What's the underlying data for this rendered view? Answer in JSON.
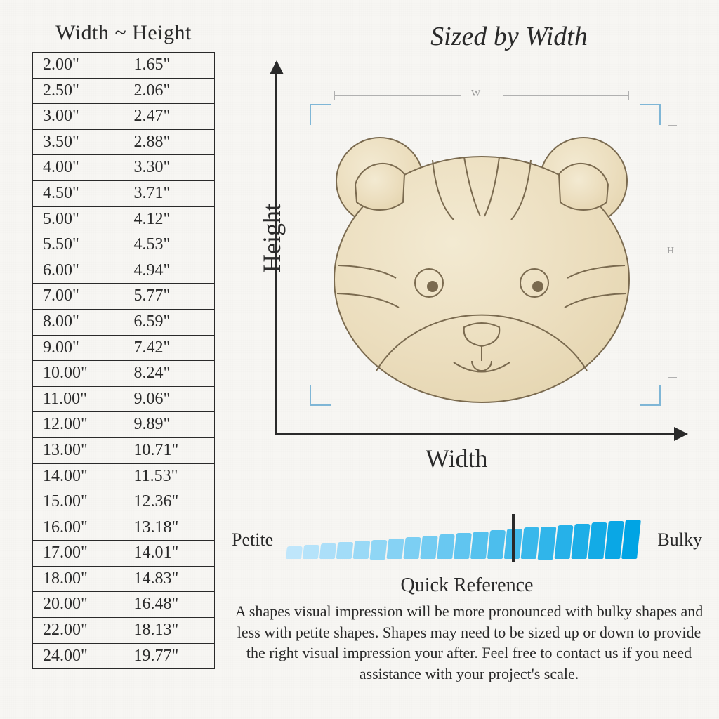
{
  "table": {
    "title": "Width ~ Height",
    "rows": [
      [
        "2.00\"",
        "1.65\""
      ],
      [
        "2.50\"",
        "2.06\""
      ],
      [
        "3.00\"",
        "2.47\""
      ],
      [
        "3.50\"",
        "2.88\""
      ],
      [
        "4.00\"",
        "3.30\""
      ],
      [
        "4.50\"",
        "3.71\""
      ],
      [
        "5.00\"",
        "4.12\""
      ],
      [
        "5.50\"",
        "4.53\""
      ],
      [
        "6.00\"",
        "4.94\""
      ],
      [
        "7.00\"",
        "5.77\""
      ],
      [
        "8.00\"",
        "6.59\""
      ],
      [
        "9.00\"",
        "7.42\""
      ],
      [
        "10.00\"",
        "8.24\""
      ],
      [
        "11.00\"",
        "9.06\""
      ],
      [
        "12.00\"",
        "9.89\""
      ],
      [
        "13.00\"",
        "10.71\""
      ],
      [
        "14.00\"",
        "11.53\""
      ],
      [
        "15.00\"",
        "12.36\""
      ],
      [
        "16.00\"",
        "13.18\""
      ],
      [
        "17.00\"",
        "14.01\""
      ],
      [
        "18.00\"",
        "14.83\""
      ],
      [
        "20.00\"",
        "16.48\""
      ],
      [
        "22.00\"",
        "18.13\""
      ],
      [
        "24.00\"",
        "19.77\""
      ]
    ],
    "cell_fontsize": 24,
    "border_color": "#2a2a2a"
  },
  "main_title": "Sized by Width",
  "axes": {
    "y_label": "Height",
    "x_label": "Width",
    "dim_w_label": "W",
    "dim_h_label": "H"
  },
  "product": {
    "name": "tiger-face-wood-cutout",
    "fill": "#ede0c1",
    "stroke": "#7a6a4f"
  },
  "scale": {
    "left_label": "Petite",
    "right_label": "Bulky",
    "bar_count": 21,
    "min_height": 18,
    "max_height": 56,
    "start_color": "#bfe6fb",
    "end_color": "#00a4e4",
    "marker_index": 13
  },
  "reference": {
    "title": "Quick Reference",
    "body": "A shapes visual impression will be more pronounced with bulky shapes and less with petite shapes. Shapes may need to be sized up or down to provide the right visual impression your after. Feel free to contact us if you need assistance with your project's scale."
  },
  "colors": {
    "background": "#f7f6f3",
    "text": "#2a2a2a",
    "bracket": "#7fb6d6",
    "dim_line": "#b0b0b0"
  }
}
